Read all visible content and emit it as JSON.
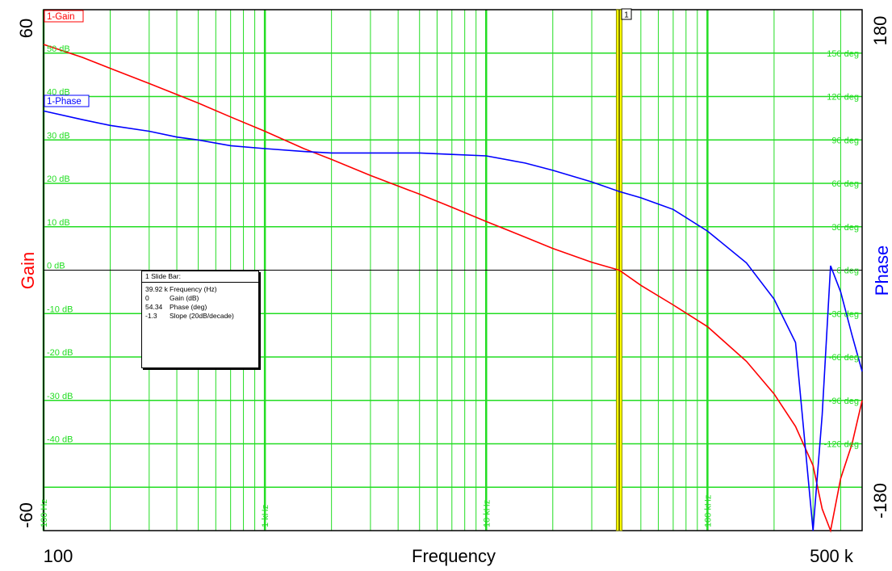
{
  "colors": {
    "background": "#ffffff",
    "grid": "#22dd22",
    "gain": "#ff0000",
    "phase": "#0000ff",
    "slide_bar": "#ffff00"
  },
  "x_axis": {
    "title": "Frequency",
    "start_label": "100",
    "end_label": "500 k",
    "decade_labels": [
      "100 Hz",
      "1 kHz",
      "10 kHz",
      "100 kHz"
    ]
  },
  "left_axis": {
    "title": "Gain",
    "top_label": "60",
    "bottom_label": "-60",
    "tick_labels": [
      "50 dB",
      "40 dB",
      "30 dB",
      "20 dB",
      "10 dB",
      "0 dB",
      "-10 dB",
      "-20 dB",
      "-30 dB",
      "-40 dB"
    ]
  },
  "right_axis": {
    "title": "Phase",
    "top_label": "180",
    "bottom_label": "-180",
    "tick_labels": [
      "150 deg",
      "120 deg",
      "90 deg",
      "60 deg",
      "30 deg",
      "0 deg",
      "-30 deg",
      "-60 deg",
      "-90 deg",
      "-120 deg"
    ]
  },
  "legend": {
    "gain": "1-Gain",
    "phase": "1-Phase"
  },
  "marker": {
    "label": "1",
    "frequency_hz": 39920
  },
  "slide_bar": {
    "title": "1  Slide Bar:",
    "rows": [
      {
        "value": "39.92 k",
        "label": "Frequency (Hz)"
      },
      {
        "value": "0",
        "label": "Gain (dB)"
      },
      {
        "value": "54.34",
        "label": "Phase (deg)"
      },
      {
        "value": "-1.3",
        "label": "Slope (20dB/decade)"
      }
    ]
  },
  "chart_data": {
    "type": "line",
    "title": "",
    "xlabel": "Frequency",
    "ylabel": "Gain",
    "y2label": "Phase",
    "x_scale": "log",
    "xlim": [
      100,
      500000
    ],
    "ylim": [
      -60,
      60
    ],
    "y2lim": [
      -180,
      180
    ],
    "grid": true,
    "legend_position": "top-left",
    "series": [
      {
        "name": "1-Gain",
        "axis": "left",
        "x": [
          100,
          150,
          200,
          300,
          500,
          700,
          1000,
          1500,
          2000,
          3000,
          5000,
          7000,
          10000,
          15000,
          20000,
          30000,
          39920,
          50000,
          70000,
          100000,
          150000,
          200000,
          250000,
          300000,
          330000,
          360000,
          400000,
          450000,
          500000
        ],
        "y": [
          52,
          49,
          46.5,
          43,
          38.5,
          35.3,
          32,
          28,
          25.5,
          21.8,
          17.5,
          14.5,
          11.2,
          7.6,
          5,
          1.8,
          0,
          -3.5,
          -8,
          -13,
          -21,
          -28.5,
          -36,
          -45,
          -55,
          -60,
          -48,
          -40,
          -30
        ]
      },
      {
        "name": "1-Phase",
        "axis": "right",
        "x": [
          100,
          150,
          200,
          300,
          400,
          500,
          700,
          1000,
          1500,
          2000,
          3000,
          5000,
          7000,
          10000,
          15000,
          20000,
          30000,
          39920,
          50000,
          70000,
          100000,
          150000,
          200000,
          250000,
          300000,
          330000,
          360000,
          400000,
          450000,
          500000
        ],
        "y": [
          110,
          104,
          100,
          96,
          92,
          90,
          86,
          84,
          82,
          81,
          81,
          81,
          80,
          79,
          74,
          69,
          61,
          54.34,
          50,
          42,
          27,
          5,
          -20,
          -50,
          -180,
          -100,
          3,
          -15,
          -45,
          -70
        ]
      }
    ]
  }
}
